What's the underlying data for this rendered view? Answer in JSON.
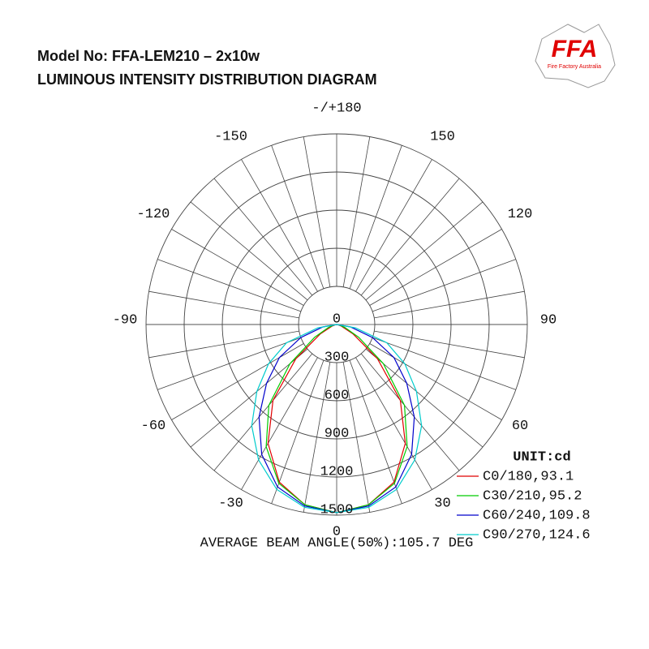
{
  "header": {
    "title": "Model No: FFA-LEM210 – 2x10w",
    "subtitle": "LUMINOUS INTENSITY DISTRIBUTION DIAGRAM",
    "logo": "FFA",
    "logo_caption": "Fire Factory Australia"
  },
  "chart_data": {
    "type": "polar",
    "unit_label": "UNIT:cd",
    "footer": "AVERAGE BEAM ANGLE(50%):105.7 DEG",
    "x": [
      -90,
      -80,
      -70,
      -60,
      -50,
      -40,
      -30,
      -20,
      -10,
      0,
      10,
      20,
      30,
      40,
      50,
      60,
      70,
      80,
      90
    ],
    "series": [
      {
        "name": "C0/180,93.1",
        "color": "#e00000",
        "values": [
          0,
          10,
          40,
          150,
          420,
          780,
          1080,
          1320,
          1440,
          1480,
          1440,
          1320,
          1080,
          780,
          420,
          150,
          40,
          10,
          0
        ]
      },
      {
        "name": "C30/210,95.2",
        "color": "#00cc00",
        "values": [
          0,
          20,
          70,
          200,
          480,
          830,
          1110,
          1330,
          1440,
          1480,
          1440,
          1330,
          1110,
          830,
          480,
          200,
          70,
          20,
          0
        ]
      },
      {
        "name": "C60/240,109.8",
        "color": "#0000cc",
        "values": [
          0,
          110,
          300,
          520,
          720,
          950,
          1180,
          1360,
          1450,
          1480,
          1450,
          1360,
          1180,
          950,
          720,
          520,
          300,
          110,
          0
        ]
      },
      {
        "name": "C90/270,124.6",
        "color": "#00cccc",
        "values": [
          0,
          150,
          420,
          620,
          820,
          1040,
          1230,
          1380,
          1460,
          1480,
          1460,
          1380,
          1230,
          1040,
          820,
          620,
          420,
          150,
          0
        ]
      }
    ],
    "rlim": [
      0,
      1500
    ],
    "rticks": [
      0,
      300,
      600,
      900,
      1200,
      1500
    ],
    "xticks": [
      {
        "value": 180,
        "label": "-/+180"
      },
      -150,
      150,
      -120,
      120,
      -90,
      90,
      -60,
      60,
      -30,
      30,
      0
    ],
    "grid_step": 10
  }
}
